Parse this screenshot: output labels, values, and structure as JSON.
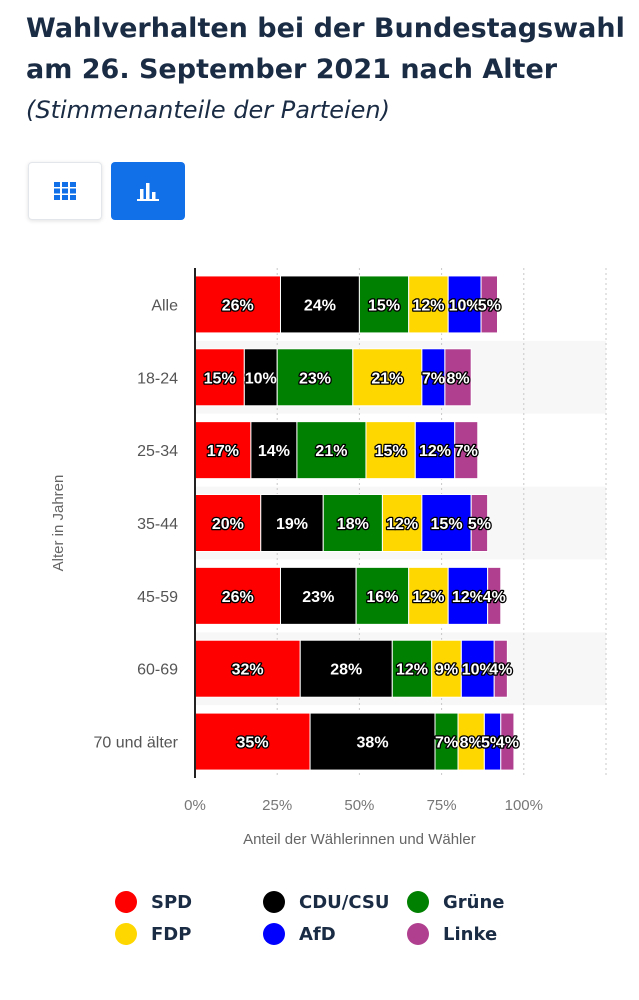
{
  "title": "Wahlverhalten bei der Bundestagswahl am 26. September 2021 nach Alter",
  "subtitle": "(Stimmenanteile der Parteien)",
  "view_buttons": {
    "table_icon": "grid-icon",
    "chart_icon": "bar-chart-icon"
  },
  "chart_data": {
    "type": "bar",
    "orientation": "horizontal",
    "stacked": true,
    "categories": [
      "Alle",
      "18-24",
      "25-34",
      "35-44",
      "45-59",
      "60-69",
      "70 und älter"
    ],
    "series": [
      {
        "name": "SPD",
        "color": "#ff0000",
        "values": [
          26,
          15,
          17,
          20,
          26,
          32,
          35
        ]
      },
      {
        "name": "CDU/CSU",
        "color": "#000000",
        "values": [
          24,
          10,
          14,
          19,
          23,
          28,
          38
        ]
      },
      {
        "name": "Grüne",
        "color": "#008000",
        "values": [
          15,
          23,
          21,
          18,
          16,
          12,
          7
        ]
      },
      {
        "name": "FDP",
        "color": "#ffd700",
        "values": [
          12,
          21,
          15,
          12,
          12,
          9,
          8
        ]
      },
      {
        "name": "AfD",
        "color": "#0000ff",
        "values": [
          10,
          7,
          12,
          15,
          12,
          10,
          5
        ]
      },
      {
        "name": "Linke",
        "color": "#b0408f",
        "values": [
          5,
          8,
          7,
          5,
          4,
          4,
          4
        ]
      }
    ],
    "value_suffix": "%",
    "xlim": [
      0,
      125
    ],
    "ticks": [
      0,
      25,
      50,
      75,
      100
    ],
    "tick_labels": [
      "0%",
      "25%",
      "50%",
      "75%",
      "100%"
    ],
    "xlabel": "Anteil der Wählerinnen und Wähler",
    "ylabel": "Alter in Jahren",
    "legend_position": "bottom"
  },
  "legend": [
    {
      "label": "SPD",
      "color": "#ff0000"
    },
    {
      "label": "CDU/CSU",
      "color": "#000000"
    },
    {
      "label": "Grüne",
      "color": "#008000"
    },
    {
      "label": "FDP",
      "color": "#ffd700"
    },
    {
      "label": "AfD",
      "color": "#0000ff"
    },
    {
      "label": "Linke",
      "color": "#b0408f"
    }
  ]
}
